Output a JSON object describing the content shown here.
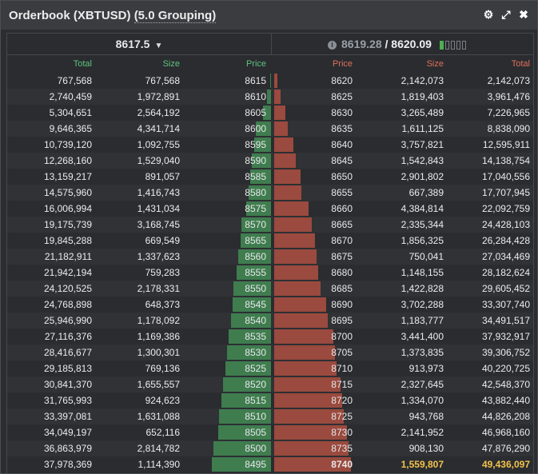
{
  "title": "Orderbook (XBTUSD)",
  "grouping": "(5.0 Grouping)",
  "mark_price": "8617.5",
  "bid_quote": "8619.28",
  "ask_quote": "8620.09",
  "columns": {
    "bid_total": "Total",
    "bid_size": "Size",
    "bid_price": "Price",
    "ask_price": "Price",
    "ask_size": "Size",
    "ask_total": "Total"
  },
  "colors": {
    "bid": "#5fc27e",
    "ask": "#e0705b",
    "highlight": "#f3c24a"
  },
  "rows": [
    {
      "bt": "767,568",
      "bs": "767,568",
      "bp": "8615",
      "ap": "8620",
      "as": "2,142,073",
      "at": "2,142,073",
      "bf": 0.015,
      "af": 0.043
    },
    {
      "bt": "2,740,459",
      "bs": "1,972,891",
      "bp": "8610",
      "ap": "8625",
      "as": "1,819,403",
      "at": "3,961,476",
      "bf": 0.055,
      "af": 0.08
    },
    {
      "bt": "5,304,651",
      "bs": "2,564,192",
      "bp": "8605",
      "ap": "8630",
      "as": "3,265,489",
      "at": "7,226,965",
      "bf": 0.107,
      "af": 0.146
    },
    {
      "bt": "9,646,365",
      "bs": "4,341,714",
      "bp": "8600",
      "ap": "8635",
      "as": "1,611,125",
      "at": "8,838,090",
      "bf": 0.195,
      "af": 0.179
    },
    {
      "bt": "10,739,120",
      "bs": "1,092,755",
      "bp": "8595",
      "ap": "8640",
      "as": "3,757,821",
      "at": "12,595,911",
      "bf": 0.217,
      "af": 0.255
    },
    {
      "bt": "12,268,160",
      "bs": "1,529,040",
      "bp": "8590",
      "ap": "8645",
      "as": "1,542,843",
      "at": "14,138,754",
      "bf": 0.248,
      "af": 0.286
    },
    {
      "bt": "13,159,217",
      "bs": "891,057",
      "bp": "8585",
      "ap": "8650",
      "as": "2,901,802",
      "at": "17,040,556",
      "bf": 0.266,
      "af": 0.345
    },
    {
      "bt": "14,575,960",
      "bs": "1,416,743",
      "bp": "8580",
      "ap": "8655",
      "as": "667,389",
      "at": "17,707,945",
      "bf": 0.295,
      "af": 0.358
    },
    {
      "bt": "16,006,994",
      "bs": "1,431,034",
      "bp": "8575",
      "ap": "8660",
      "as": "4,384,814",
      "at": "22,092,759",
      "bf": 0.324,
      "af": 0.447
    },
    {
      "bt": "19,175,739",
      "bs": "3,168,745",
      "bp": "8570",
      "ap": "8665",
      "as": "2,335,344",
      "at": "24,428,103",
      "bf": 0.388,
      "af": 0.494
    },
    {
      "bt": "19,845,288",
      "bs": "669,549",
      "bp": "8565",
      "ap": "8670",
      "as": "1,856,325",
      "at": "26,284,428",
      "bf": 0.401,
      "af": 0.532
    },
    {
      "bt": "21,182,911",
      "bs": "1,337,623",
      "bp": "8560",
      "ap": "8675",
      "as": "750,041",
      "at": "27,034,469",
      "bf": 0.428,
      "af": 0.547
    },
    {
      "bt": "21,942,194",
      "bs": "759,283",
      "bp": "8555",
      "ap": "8680",
      "as": "1,148,155",
      "at": "28,182,624",
      "bf": 0.444,
      "af": 0.57
    },
    {
      "bt": "24,120,525",
      "bs": "2,178,331",
      "bp": "8550",
      "ap": "8685",
      "as": "1,422,828",
      "at": "29,605,452",
      "bf": 0.488,
      "af": 0.599
    },
    {
      "bt": "24,768,898",
      "bs": "648,373",
      "bp": "8545",
      "ap": "8690",
      "as": "3,702,288",
      "at": "33,307,740",
      "bf": 0.501,
      "af": 0.674
    },
    {
      "bt": "25,946,990",
      "bs": "1,178,092",
      "bp": "8540",
      "ap": "8695",
      "as": "1,183,777",
      "at": "34,491,517",
      "bf": 0.525,
      "af": 0.698
    },
    {
      "bt": "27,116,376",
      "bs": "1,169,386",
      "bp": "8535",
      "ap": "8700",
      "as": "3,441,400",
      "at": "37,932,917",
      "bf": 0.549,
      "af": 0.767
    },
    {
      "bt": "28,416,677",
      "bs": "1,300,301",
      "bp": "8530",
      "ap": "8705",
      "as": "1,373,835",
      "at": "39,306,752",
      "bf": 0.575,
      "af": 0.795
    },
    {
      "bt": "29,185,813",
      "bs": "769,136",
      "bp": "8525",
      "ap": "8710",
      "as": "913,973",
      "at": "40,220,725",
      "bf": 0.59,
      "af": 0.814
    },
    {
      "bt": "30,841,370",
      "bs": "1,655,557",
      "bp": "8520",
      "ap": "8715",
      "as": "2,327,645",
      "at": "42,548,370",
      "bf": 0.624,
      "af": 0.861
    },
    {
      "bt": "31,765,993",
      "bs": "924,623",
      "bp": "8515",
      "ap": "8720",
      "as": "1,334,070",
      "at": "43,882,440",
      "bf": 0.643,
      "af": 0.888
    },
    {
      "bt": "33,397,081",
      "bs": "1,631,088",
      "bp": "8510",
      "ap": "8725",
      "as": "943,768",
      "at": "44,826,208",
      "bf": 0.676,
      "af": 0.907
    },
    {
      "bt": "34,049,197",
      "bs": "652,116",
      "bp": "8505",
      "ap": "8730",
      "as": "2,141,952",
      "at": "46,968,160",
      "bf": 0.689,
      "af": 0.95
    },
    {
      "bt": "36,863,979",
      "bs": "2,814,782",
      "bp": "8500",
      "ap": "8735",
      "as": "908,130",
      "at": "47,876,290",
      "bf": 0.746,
      "af": 0.968
    },
    {
      "bt": "37,978,369",
      "bs": "1,114,390",
      "bp": "8495",
      "ap": "8740",
      "as": "1,559,807",
      "at": "49,436,097",
      "bf": 0.768,
      "af": 1.0,
      "hl": true
    }
  ]
}
